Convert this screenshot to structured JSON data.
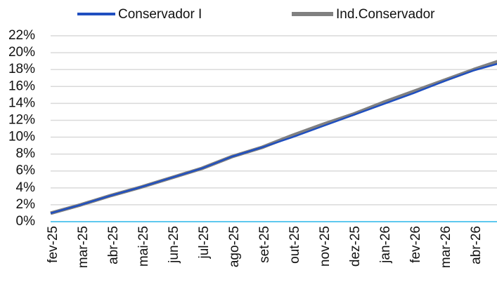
{
  "chart_data": {
    "type": "line",
    "categories": [
      "fev-25",
      "mar-25",
      "abr-25",
      "mai-25",
      "jun-25",
      "jul-25",
      "ago-25",
      "set-25",
      "out-25",
      "nov-25",
      "dez-25",
      "jan-26",
      "fev-26",
      "mar-26",
      "abr-26",
      null
    ],
    "series": [
      {
        "name": "Conservador I",
        "color": "#1f4fc0",
        "values": [
          1.0,
          2.0,
          3.1,
          4.1,
          5.2,
          6.3,
          7.7,
          8.8,
          10.0,
          11.3,
          12.6,
          13.9,
          15.2,
          16.6,
          17.9,
          18.9
        ]
      },
      {
        "name": "Ind.Conservador",
        "color": "#808080",
        "values": [
          1.0,
          2.0,
          3.1,
          4.1,
          5.2,
          6.3,
          7.7,
          8.8,
          10.2,
          11.5,
          12.7,
          14.1,
          15.4,
          16.7,
          18.0,
          19.2
        ]
      }
    ],
    "ylim": [
      0,
      22
    ],
    "yticks": [
      {
        "value": 0,
        "label": "0%"
      },
      {
        "value": 2,
        "label": "2%"
      },
      {
        "value": 4,
        "label": "4%"
      },
      {
        "value": 6,
        "label": "6%"
      },
      {
        "value": 8,
        "label": "8%"
      },
      {
        "value": 10,
        "label": "10%"
      },
      {
        "value": 12,
        "label": "12%"
      },
      {
        "value": 14,
        "label": "14%"
      },
      {
        "value": 16,
        "label": "16%"
      },
      {
        "value": 18,
        "label": "18%"
      },
      {
        "value": 20,
        "label": "20%"
      },
      {
        "value": 22,
        "label": "22%"
      }
    ],
    "grid": true,
    "zero_line_color": "#29b6e8",
    "legend": "top"
  }
}
